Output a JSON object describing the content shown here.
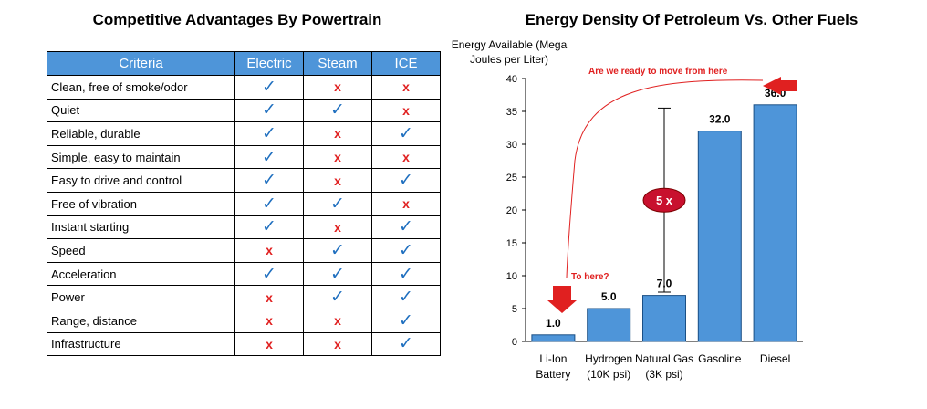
{
  "left_panel": {
    "title": "Competitive Advantages By Powertrain",
    "columns": [
      "Criteria",
      "Electric",
      "Steam",
      "ICE"
    ],
    "rows": [
      {
        "criteria": "Clean, free of smoke/odor",
        "marks": [
          "yes",
          "no",
          "no"
        ]
      },
      {
        "criteria": "Quiet",
        "marks": [
          "yes",
          "yes",
          "no"
        ]
      },
      {
        "criteria": "Reliable, durable",
        "marks": [
          "yes",
          "no",
          "yes"
        ]
      },
      {
        "criteria": "Simple, easy to maintain",
        "marks": [
          "yes",
          "no",
          "no"
        ]
      },
      {
        "criteria": "Easy to drive and control",
        "marks": [
          "yes",
          "no",
          "yes"
        ]
      },
      {
        "criteria": "Free of vibration",
        "marks": [
          "yes",
          "yes",
          "no"
        ]
      },
      {
        "criteria": "Instant starting",
        "marks": [
          "yes",
          "no",
          "yes"
        ]
      },
      {
        "criteria": "Speed",
        "marks": [
          "no",
          "yes",
          "yes"
        ]
      },
      {
        "criteria": "Acceleration",
        "marks": [
          "yes",
          "yes",
          "yes"
        ]
      },
      {
        "criteria": "Power",
        "marks": [
          "no",
          "yes",
          "yes"
        ]
      },
      {
        "criteria": "Range, distance",
        "marks": [
          "no",
          "no",
          "yes"
        ]
      },
      {
        "criteria": "Infrastructure",
        "marks": [
          "no",
          "no",
          "yes"
        ]
      }
    ],
    "symbols": {
      "yes": "✓",
      "no": "x"
    },
    "colors": {
      "header_bg": "#4e95d9",
      "check": "#1f6fbf",
      "cross": "#e02020"
    }
  },
  "chart_data": {
    "type": "bar",
    "title": "Energy Density Of Petroleum Vs. Other Fuels",
    "ylabel_lines": [
      "Energy Available (Mega",
      "Joules per Liter)"
    ],
    "ylim": [
      0,
      40
    ],
    "yticks": [
      0,
      5,
      10,
      15,
      20,
      25,
      30,
      35,
      40
    ],
    "categories": [
      [
        "Li-Ion",
        "Battery"
      ],
      [
        "Hydrogen",
        "(10K psi)"
      ],
      [
        "Natural Gas",
        "(3K psi)"
      ],
      [
        "Gasoline"
      ],
      [
        "Diesel"
      ]
    ],
    "values": [
      1.0,
      5.0,
      7.0,
      32.0,
      36.0
    ],
    "value_labels": [
      "1.0",
      "5.0",
      "7.0",
      "32.0",
      "36.0"
    ],
    "bar_color": "#4e95d9",
    "annotations": {
      "move_from": "Are we ready to move from here",
      "to_here": "To here?",
      "ratio_label": "5 x",
      "ratio_range": [
        7.5,
        35.5
      ],
      "arrow_color": "#e02020"
    }
  }
}
